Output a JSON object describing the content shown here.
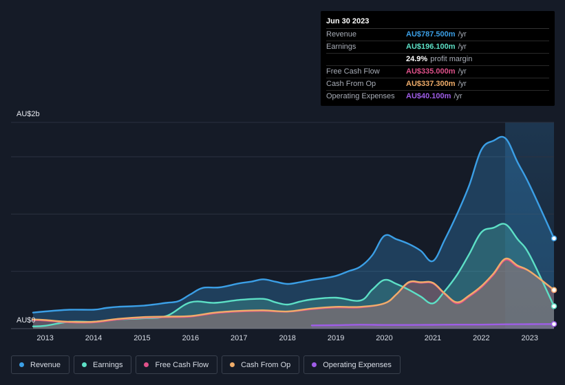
{
  "tooltip": {
    "date": "Jun 30 2023",
    "rows": [
      {
        "label": "Revenue",
        "value": "AU$787.500m",
        "unit": "/yr",
        "color": "#3b9fe6"
      },
      {
        "label": "Earnings",
        "value": "AU$196.100m",
        "unit": "/yr",
        "color": "#5de0c6"
      },
      {
        "label": "",
        "value": "24.9%",
        "unit": "profit margin",
        "color": "#ffffff"
      },
      {
        "label": "Free Cash Flow",
        "value": "AU$335.000m",
        "unit": "/yr",
        "color": "#e0518a"
      },
      {
        "label": "Cash From Op",
        "value": "AU$337.300m",
        "unit": "/yr",
        "color": "#f0ad6a"
      },
      {
        "label": "Operating Expenses",
        "value": "AU$40.100m",
        "unit": "/yr",
        "color": "#9f5de8"
      }
    ]
  },
  "legend": [
    {
      "label": "Revenue",
      "color": "#3b9fe6"
    },
    {
      "label": "Earnings",
      "color": "#5de0c6"
    },
    {
      "label": "Free Cash Flow",
      "color": "#e0518a"
    },
    {
      "label": "Cash From Op",
      "color": "#f0ad6a"
    },
    {
      "label": "Operating Expenses",
      "color": "#9f5de8"
    }
  ],
  "chart_data": {
    "type": "area",
    "title": "",
    "ylabel_top": "AU$2b",
    "ylabel_bottom": "AU$0",
    "ylim": [
      0,
      1800
    ],
    "xlim": [
      2012.75,
      2023.5
    ],
    "x_ticks": [
      2013,
      2014,
      2015,
      2016,
      2017,
      2018,
      2019,
      2020,
      2021,
      2022,
      2023
    ],
    "x_tick_labels": [
      "2013",
      "2014",
      "2015",
      "2016",
      "2017",
      "2018",
      "2019",
      "2020",
      "2021",
      "2022",
      "2023"
    ],
    "series": [
      {
        "name": "Revenue",
        "color": "#3b9fe6",
        "x": [
          2012.75,
          2013,
          2013.5,
          2014,
          2014.25,
          2014.5,
          2015,
          2015.5,
          2015.75,
          2016,
          2016.25,
          2016.6,
          2017,
          2017.25,
          2017.5,
          2017.75,
          2018,
          2018.25,
          2018.5,
          2018.75,
          2019,
          2019.25,
          2019.5,
          2019.75,
          2020,
          2020.25,
          2020.5,
          2020.75,
          2021,
          2021.25,
          2021.5,
          2021.75,
          2022,
          2022.25,
          2022.5,
          2022.75,
          2023,
          2023.5
        ],
        "y": [
          140,
          150,
          165,
          165,
          180,
          190,
          200,
          225,
          240,
          300,
          355,
          360,
          395,
          410,
          430,
          410,
          390,
          405,
          425,
          440,
          460,
          500,
          540,
          640,
          810,
          780,
          740,
          680,
          590,
          780,
          1000,
          1250,
          1560,
          1640,
          1660,
          1450,
          1250,
          787.5
        ]
      },
      {
        "name": "Earnings",
        "color": "#5de0c6",
        "x": [
          2012.75,
          2013,
          2013.5,
          2014,
          2014.5,
          2015,
          2015.5,
          2016,
          2016.5,
          2017,
          2017.5,
          2017.75,
          2018,
          2018.25,
          2018.5,
          2019,
          2019.5,
          2019.75,
          2020,
          2020.25,
          2020.5,
          2020.75,
          2021,
          2021.25,
          2021.5,
          2021.75,
          2022,
          2022.25,
          2022.5,
          2022.75,
          2023,
          2023.5
        ],
        "y": [
          20,
          25,
          60,
          60,
          80,
          90,
          110,
          230,
          225,
          250,
          260,
          230,
          210,
          235,
          255,
          270,
          245,
          340,
          425,
          390,
          340,
          280,
          220,
          330,
          470,
          650,
          840,
          880,
          910,
          780,
          640,
          196
        ]
      },
      {
        "name": "Free Cash Flow",
        "color": "#e0518a",
        "x": [
          2012.75,
          2013,
          2013.5,
          2014,
          2014.5,
          2015,
          2015.5,
          2016,
          2016.5,
          2017,
          2017.5,
          2018,
          2018.5,
          2019,
          2019.5,
          2020,
          2020.25,
          2020.5,
          2020.75,
          2021,
          2021.25,
          2021.5,
          2021.75,
          2022,
          2022.25,
          2022.5,
          2022.75,
          2023,
          2023.5
        ],
        "y": [
          75,
          70,
          55,
          55,
          80,
          95,
          100,
          105,
          135,
          150,
          155,
          148,
          170,
          185,
          185,
          220,
          300,
          400,
          400,
          395,
          300,
          220,
          280,
          360,
          470,
          600,
          540,
          500,
          335
        ]
      },
      {
        "name": "Cash From Op",
        "color": "#f0ad6a",
        "x": [
          2012.75,
          2013,
          2013.5,
          2014,
          2014.5,
          2015,
          2015.5,
          2016,
          2016.5,
          2017,
          2017.5,
          2018,
          2018.5,
          2019,
          2019.5,
          2020,
          2020.25,
          2020.5,
          2020.75,
          2021,
          2021.25,
          2021.5,
          2021.75,
          2022,
          2022.25,
          2022.5,
          2022.75,
          2023,
          2023.5
        ],
        "y": [
          80,
          75,
          60,
          60,
          85,
          100,
          105,
          110,
          140,
          155,
          160,
          150,
          175,
          190,
          190,
          220,
          300,
          405,
          405,
          400,
          305,
          230,
          290,
          370,
          480,
          610,
          550,
          500,
          337.3
        ]
      },
      {
        "name": "Operating Expenses",
        "color": "#9f5de8",
        "x": [
          2018.5,
          2019,
          2019.5,
          2020,
          2020.5,
          2021,
          2021.5,
          2022,
          2022.5,
          2023,
          2023.5
        ],
        "y": [
          28,
          30,
          34,
          32,
          32,
          33,
          35,
          35,
          38,
          39,
          40.1
        ]
      }
    ]
  }
}
